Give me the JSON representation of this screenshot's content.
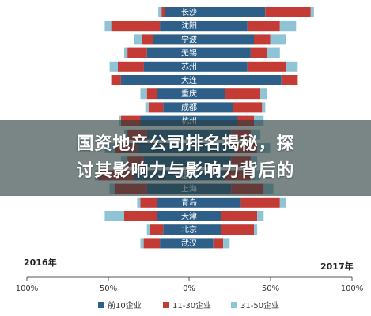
{
  "chart_data": {
    "type": "bar",
    "orientation": "horizontal-diverging",
    "left_panel_label": "2016年",
    "right_panel_label": "2017年",
    "x_ticks": [
      "100%",
      "50%",
      "0%",
      "50%",
      "100%"
    ],
    "legend": [
      {
        "name": "前10企业",
        "color": "#2e5f88"
      },
      {
        "name": "11-30企业",
        "color": "#c43b35"
      },
      {
        "name": "31-50企业",
        "color": "#8fc4d6"
      }
    ],
    "categories": [
      "长沙",
      "沈阳",
      "宁波",
      "无锡",
      "苏州",
      "大连",
      "重庆",
      "成都",
      "杭州",
      "",
      "",
      "",
      "厦门",
      "上海",
      "青岛",
      "天津",
      "北京",
      "武汉"
    ],
    "series_2016": [
      {
        "name": "前10企业",
        "values": [
          15,
          18,
          22,
          26,
          28,
          42,
          20,
          16,
          30,
          26,
          32,
          28,
          34,
          26,
          20,
          20,
          16,
          18
        ]
      },
      {
        "name": "11-30企业",
        "values": [
          2,
          30,
          7,
          12,
          16,
          6,
          6,
          9,
          12,
          12,
          14,
          10,
          22,
          20,
          10,
          20,
          8,
          10
        ]
      },
      {
        "name": "31-50企业",
        "values": [
          2,
          4,
          5,
          2,
          5,
          0,
          4,
          2,
          1,
          2,
          6,
          4,
          2,
          3,
          2,
          12,
          2,
          2
        ]
      }
    ],
    "series_2017": [
      {
        "name": "前10企业",
        "values": [
          47,
          36,
          40,
          38,
          36,
          57,
          22,
          27,
          30,
          26,
          28,
          26,
          22,
          26,
          32,
          20,
          20,
          15
        ]
      },
      {
        "name": "11-30企业",
        "values": [
          28,
          20,
          10,
          10,
          24,
          10,
          22,
          18,
          10,
          12,
          14,
          12,
          16,
          20,
          24,
          22,
          20,
          6
        ]
      },
      {
        "name": "31-50企业",
        "values": [
          2,
          10,
          10,
          8,
          7,
          0,
          4,
          2,
          6,
          6,
          8,
          4,
          6,
          6,
          4,
          4,
          2,
          4
        ]
      }
    ]
  },
  "overlay": {
    "line1": "国资地产公司排名揭秘，探",
    "line2": "讨其影响力与影响力背后的"
  }
}
